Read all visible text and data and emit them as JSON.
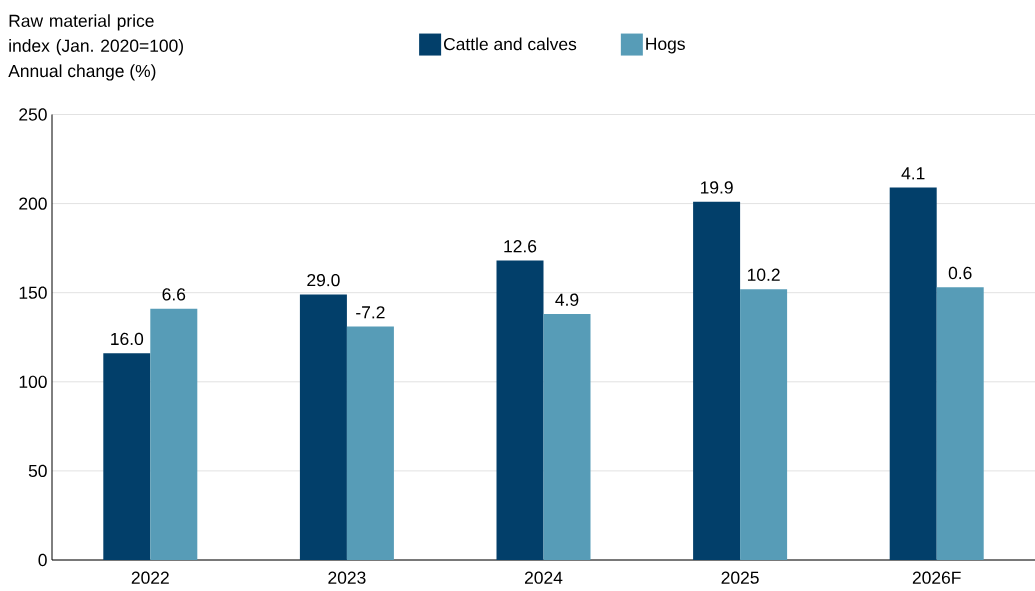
{
  "chart_data": {
    "type": "bar",
    "ylabel": "Raw material price index (Jan. 2020=100)",
    "annotations": [
      "Annual change (%)",
      {
        "text": "16.0",
        "x": "2022",
        "y": 116
      },
      {
        "text": "29.0",
        "x": "2023",
        "y": 149
      },
      {
        "text": "12.6",
        "x": "2024",
        "y": 168
      },
      {
        "text": "19.9",
        "x": "2025",
        "y": 201
      },
      {
        "text": "4.1",
        "x": "2026F",
        "y": 209
      },
      {
        "text": "6.6",
        "x": "2022",
        "y": 141
      },
      {
        "text": "-7.2",
        "x": "2023",
        "y": 131
      },
      {
        "text": "4.9",
        "x": "2024",
        "y": 138
      },
      {
        "text": "10.2",
        "x": "2025",
        "y": 152
      },
      {
        "text": "0.6",
        "x": "2026F",
        "y": 153
      }
    ],
    "categories": [
      "2022",
      "2023",
      "2024",
      "2025",
      "2026F"
    ],
    "series": [
      {
        "name": "Cattle and calves",
        "color": "#023f6a",
        "values": [
          116,
          149,
          168,
          201,
          209
        ]
      },
      {
        "name": "Hogs",
        "color": "#579cb7",
        "values": [
          141,
          131,
          138,
          152,
          153
        ]
      }
    ],
    "ylim": [
      0,
      250
    ],
    "yticks": [
      0,
      50,
      100,
      150,
      200,
      250
    ],
    "grid": "y",
    "legend": "top"
  }
}
